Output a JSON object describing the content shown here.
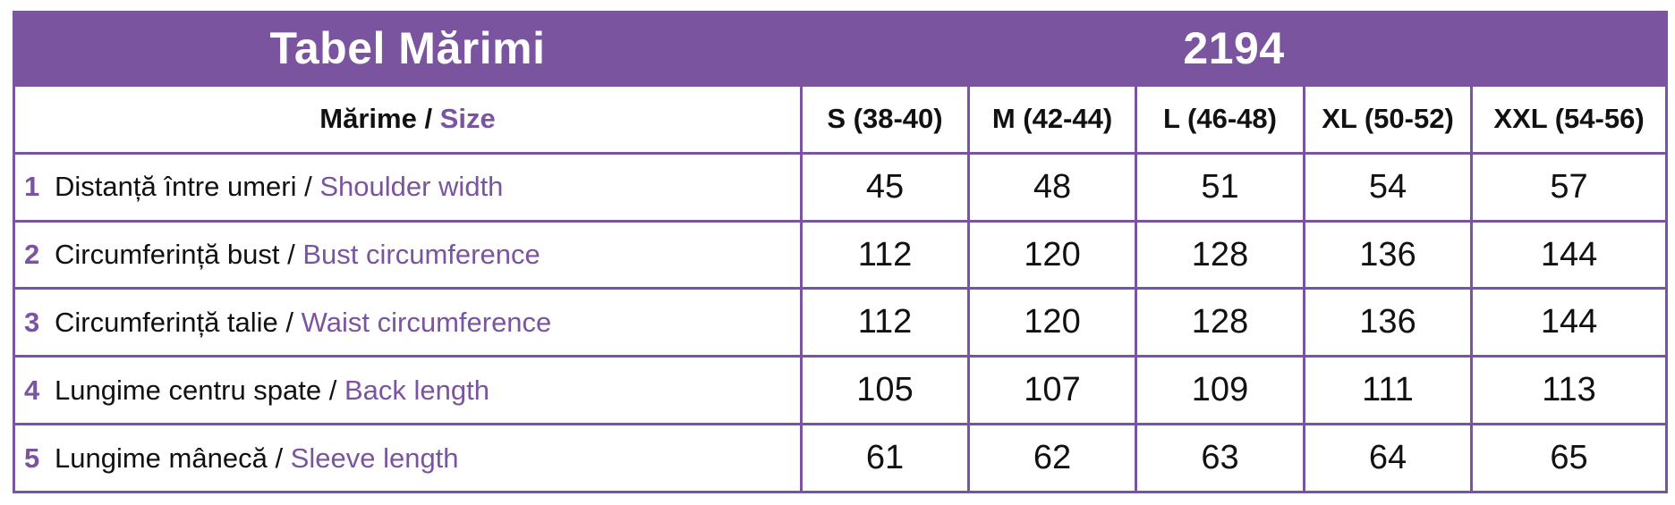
{
  "title": {
    "left": "Tabel Mărimi",
    "right": "2194"
  },
  "header": {
    "size_label_ro": "Mărime",
    "separator": " / ",
    "size_label_en": "Size",
    "sizes": [
      "S (38-40)",
      "M (42-44)",
      "L (46-48)",
      "XL (50-52)",
      "XXL (54-56)"
    ]
  },
  "rows": [
    {
      "num": "1",
      "label_ro": "Distanță între umeri",
      "sep": " / ",
      "label_en": "Shoulder width",
      "values": [
        "45",
        "48",
        "51",
        "54",
        "57"
      ]
    },
    {
      "num": "2",
      "label_ro": "Circumferință bust",
      "sep": " / ",
      "label_en": "Bust circumference",
      "values": [
        "112",
        "120",
        "128",
        "136",
        "144"
      ]
    },
    {
      "num": "3",
      "label_ro": "Circumferință talie",
      "sep": " / ",
      "label_en": "Waist circumference",
      "values": [
        "112",
        "120",
        "128",
        "136",
        "144"
      ]
    },
    {
      "num": "4",
      "label_ro": "Lungime centru spate",
      "sep": " / ",
      "label_en": "Back length",
      "values": [
        "105",
        "107",
        "109",
        "111",
        "113"
      ]
    },
    {
      "num": "5",
      "label_ro": "Lungime mânecă",
      "sep": " / ",
      "label_en": "Sleeve length",
      "values": [
        "61",
        "62",
        "63",
        "64",
        "65"
      ]
    }
  ],
  "colors": {
    "accent": "#7b54a0",
    "text": "#111111",
    "background": "#ffffff"
  }
}
